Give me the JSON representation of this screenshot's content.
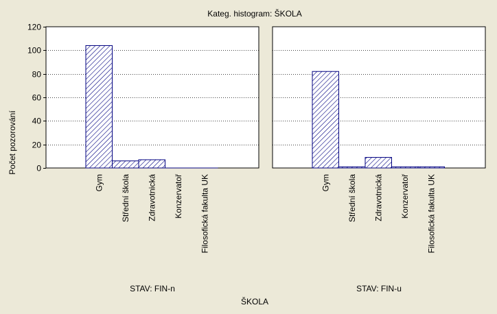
{
  "chart_data": {
    "type": "bar",
    "title": "Kateg. histogram: ŠKOLA",
    "xlabel": "ŠKOLA",
    "ylabel": "Počet pozorování",
    "ylim": [
      0,
      120
    ],
    "yticks": [
      0,
      20,
      40,
      60,
      80,
      100,
      120
    ],
    "grid": true,
    "categories": [
      "Gym",
      "Střední škola",
      "Zdravotnická",
      "Konzervatoř",
      "Filosofická fakulta UK"
    ],
    "panels": [
      {
        "label": "STAV: FIN-n",
        "values": [
          104,
          6,
          7,
          0,
          0
        ]
      },
      {
        "label": "STAV: FIN-u",
        "values": [
          82,
          1,
          9,
          1,
          1
        ]
      }
    ],
    "colors": {
      "bar_stroke": "#000080",
      "hatch": "#000080",
      "background": "#ECE9D8",
      "plot": "#FFFFFF"
    }
  }
}
